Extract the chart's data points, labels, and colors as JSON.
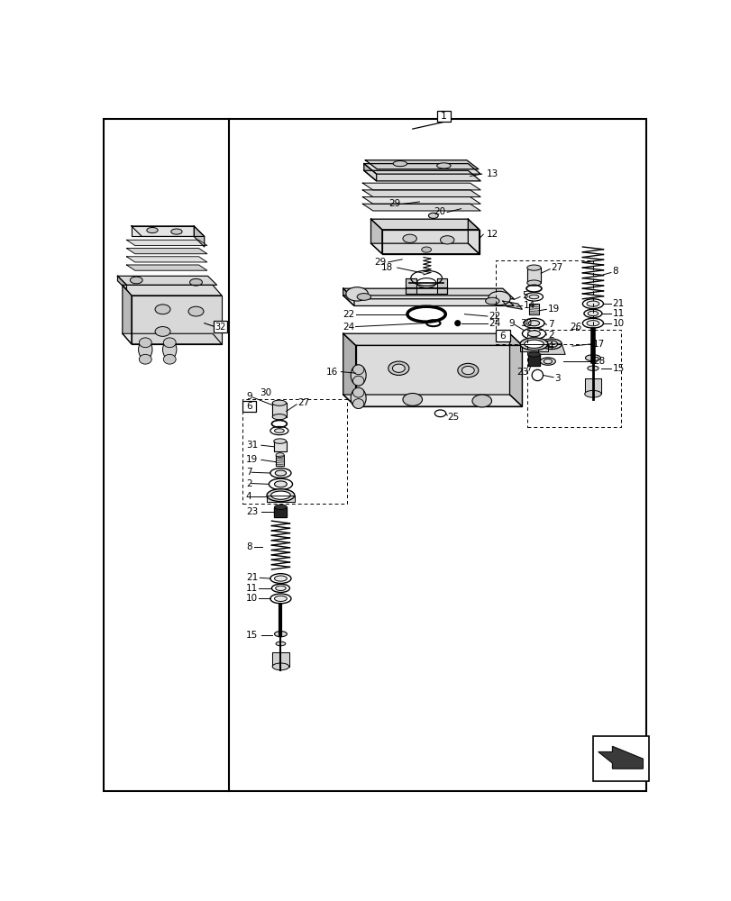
{
  "bg_color": "#ffffff",
  "line_color": "#000000",
  "fig_width": 8.12,
  "fig_height": 10.0,
  "dpi": 100,
  "gray_light": "#e8e8e8",
  "gray_mid": "#d0d0d0",
  "gray_dark": "#b0b0b0",
  "gray_fill": "#c8c8c8"
}
